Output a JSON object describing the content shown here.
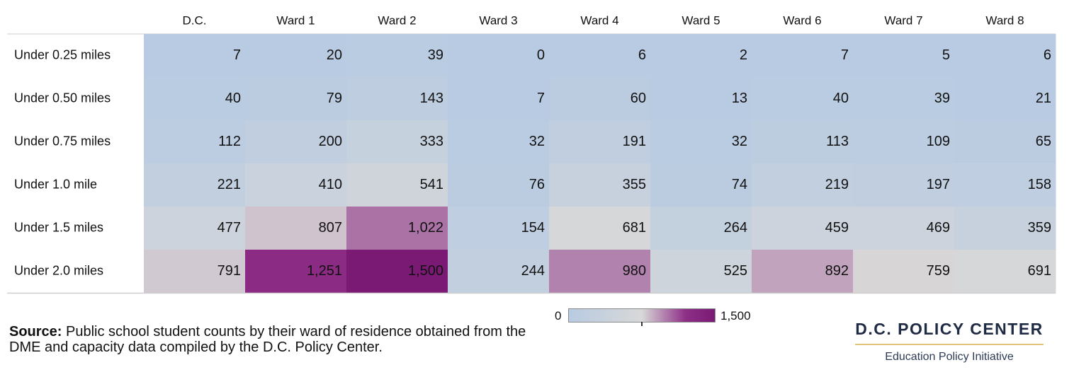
{
  "chart_data": {
    "type": "heatmap",
    "columns": [
      "D.C.",
      "Ward 1",
      "Ward 2",
      "Ward 3",
      "Ward 4",
      "Ward 5",
      "Ward 6",
      "Ward 7",
      "Ward 8"
    ],
    "rows": [
      "Under 0.25 miles",
      "Under 0.50 miles",
      "Under 0.75 miles",
      "Under 1.0 mile",
      "Under 1.5 miles",
      "Under 2.0 miles"
    ],
    "values": [
      [
        7,
        20,
        39,
        0,
        6,
        2,
        7,
        5,
        6
      ],
      [
        40,
        79,
        143,
        7,
        60,
        13,
        40,
        39,
        21
      ],
      [
        112,
        200,
        333,
        32,
        191,
        32,
        113,
        109,
        65
      ],
      [
        221,
        410,
        541,
        76,
        355,
        74,
        219,
        197,
        158
      ],
      [
        477,
        807,
        1022,
        154,
        681,
        264,
        459,
        469,
        359
      ],
      [
        791,
        1251,
        1500,
        244,
        980,
        525,
        892,
        759,
        691
      ]
    ],
    "color_scale": {
      "min": 0,
      "max": 1500,
      "min_label": "0",
      "max_label": "1,500",
      "colors": [
        "#b8cbe2",
        "#d8d8d8",
        "#8e2f86",
        "#7a1a74"
      ]
    }
  },
  "source": {
    "label": "Source:",
    "text": " Public school student counts by their ward of residence obtained from the DME  and capacity data compiled by the D.C. Policy Center."
  },
  "branding": {
    "name": "D.C. POLICY CENTER",
    "subtitle": "Education Policy Initiative",
    "accent_color": "#e3c27a"
  }
}
